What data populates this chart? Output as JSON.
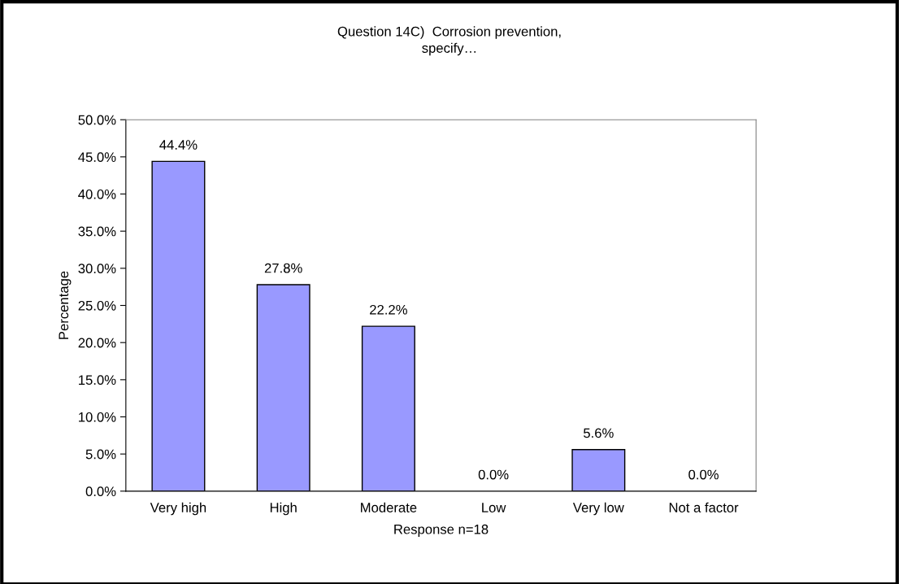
{
  "chart_data": {
    "type": "bar",
    "title": "Question 14C)  Corrosion prevention,\nspecify…",
    "xlabel": "Response n=18",
    "ylabel": "Percentage",
    "categories": [
      "Very high",
      "High",
      "Moderate",
      "Low",
      "Very low",
      "Not a factor"
    ],
    "values": [
      44.4,
      27.8,
      22.2,
      0,
      5.6,
      0
    ],
    "color": "#9999ff",
    "value_labels": [
      "44.4%",
      "27.8%",
      "22.2%",
      "0.0%",
      "5.6%",
      "0.0%"
    ],
    "ylim": [
      0,
      50
    ],
    "yticks": [
      {
        "value": 0,
        "label": "0.0%"
      },
      {
        "value": 5,
        "label": "5.0%"
      },
      {
        "value": 10,
        "label": "10.0%"
      },
      {
        "value": 15,
        "label": "15.0%"
      },
      {
        "value": 20,
        "label": "20.0%"
      },
      {
        "value": 25,
        "label": "25.0%"
      },
      {
        "value": 30,
        "label": "30.0%"
      },
      {
        "value": 35,
        "label": "35.0%"
      },
      {
        "value": 40,
        "label": "40.0%"
      },
      {
        "value": 45,
        "label": "45.0%"
      },
      {
        "value": 50,
        "label": "50.0%"
      }
    ],
    "grid": false,
    "legend": false
  }
}
